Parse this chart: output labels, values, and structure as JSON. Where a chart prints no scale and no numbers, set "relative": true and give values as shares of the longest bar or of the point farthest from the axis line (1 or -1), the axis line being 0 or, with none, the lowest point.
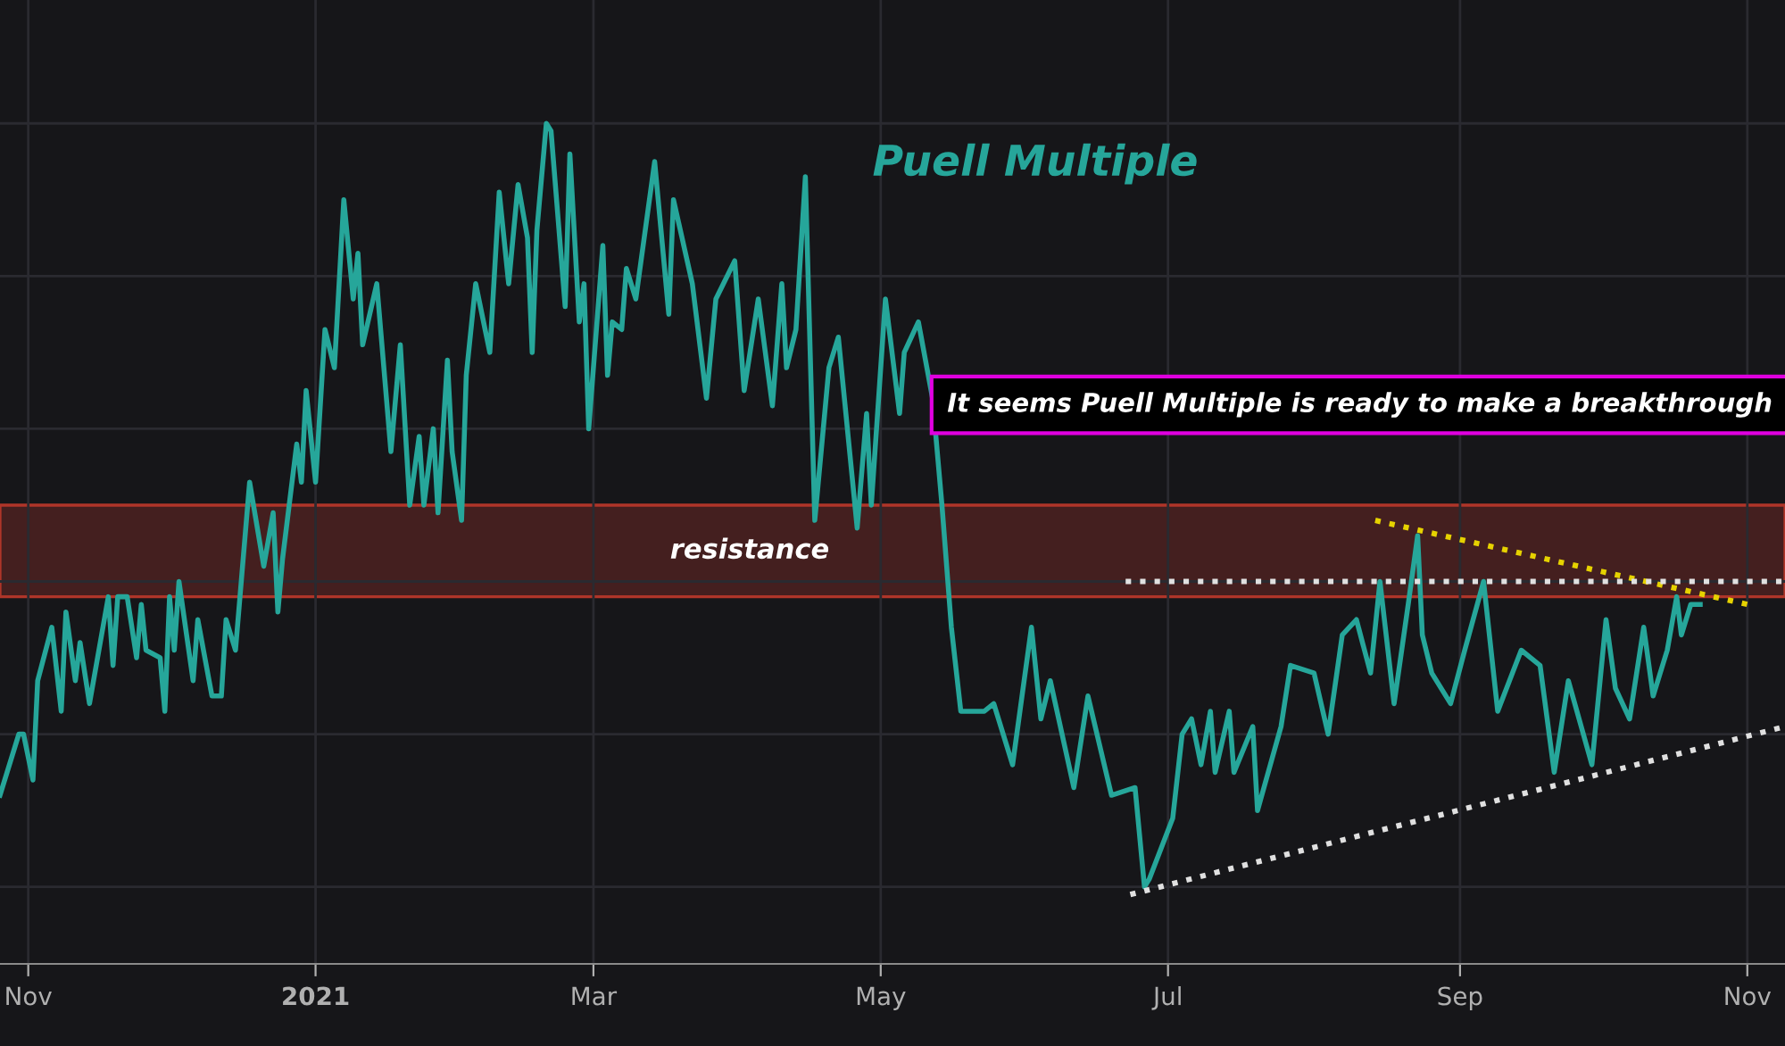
{
  "chart_data": {
    "type": "line",
    "title": "Puell Multiple",
    "relative": true,
    "grid": true,
    "tick_labels": "x",
    "xlim": [
      "2020-10-26",
      "2021-11-09"
    ],
    "xticks": [
      {
        "value": "2020-11-01",
        "label": "Nov"
      },
      {
        "value": "2021-01-01",
        "label": "2021"
      },
      {
        "value": "2021-03-01",
        "label": "Mar"
      },
      {
        "value": "2021-05-01",
        "label": "May"
      },
      {
        "value": "2021-07-01",
        "label": "Jul"
      },
      {
        "value": "2021-09-01",
        "label": "Sep"
      },
      {
        "value": "2021-11-01",
        "label": "Nov"
      }
    ],
    "x": [
      "2020-10-26",
      "2020-10-30",
      "2020-10-31",
      "2020-11-02",
      "2020-11-03",
      "2020-11-06",
      "2020-11-08",
      "2020-11-09",
      "2020-11-11",
      "2020-11-12",
      "2020-11-14",
      "2020-11-18",
      "2020-11-19",
      "2020-11-20",
      "2020-11-22",
      "2020-11-24",
      "2020-11-25",
      "2020-11-26",
      "2020-11-29",
      "2020-11-30",
      "2020-12-01",
      "2020-12-02",
      "2020-12-03",
      "2020-12-06",
      "2020-12-07",
      "2020-12-10",
      "2020-12-12",
      "2020-12-13",
      "2020-12-15",
      "2020-12-18",
      "2020-12-21",
      "2020-12-23",
      "2020-12-24",
      "2020-12-25",
      "2020-12-28",
      "2020-12-29",
      "2020-12-30",
      "2021-01-01",
      "2021-01-03",
      "2021-01-05",
      "2021-01-07",
      "2021-01-09",
      "2021-01-10",
      "2021-01-11",
      "2021-01-14",
      "2021-01-17",
      "2021-01-19",
      "2021-01-21",
      "2021-01-23",
      "2021-01-24",
      "2021-01-26",
      "2021-01-27",
      "2021-01-29",
      "2021-01-30",
      "2021-02-01",
      "2021-02-02",
      "2021-02-04",
      "2021-02-07",
      "2021-02-09",
      "2021-02-11",
      "2021-02-13",
      "2021-02-15",
      "2021-02-16",
      "2021-02-17",
      "2021-02-19",
      "2021-02-20",
      "2021-02-23",
      "2021-02-24",
      "2021-02-26",
      "2021-02-27",
      "2021-02-28",
      "2021-03-03",
      "2021-03-04",
      "2021-03-05",
      "2021-03-07",
      "2021-03-08",
      "2021-03-10",
      "2021-03-14",
      "2021-03-17",
      "2021-03-18",
      "2021-03-22",
      "2021-03-25",
      "2021-03-27",
      "2021-03-31",
      "2021-04-02",
      "2021-04-05",
      "2021-04-08",
      "2021-04-10",
      "2021-04-11",
      "2021-04-13",
      "2021-04-15",
      "2021-04-17",
      "2021-04-20",
      "2021-04-22",
      "2021-04-26",
      "2021-04-28",
      "2021-04-29",
      "2021-05-02",
      "2021-05-05",
      "2021-05-06",
      "2021-05-09",
      "2021-05-12",
      "2021-05-14",
      "2021-05-16",
      "2021-05-18",
      "2021-05-23",
      "2021-05-25",
      "2021-05-29",
      "2021-06-02",
      "2021-06-04",
      "2021-06-06",
      "2021-06-11",
      "2021-06-14",
      "2021-06-19",
      "2021-06-24",
      "2021-06-26",
      "2021-06-27",
      "2021-07-02",
      "2021-07-04",
      "2021-07-06",
      "2021-07-08",
      "2021-07-10",
      "2021-07-11",
      "2021-07-14",
      "2021-07-15",
      "2021-07-19",
      "2021-07-20",
      "2021-07-25",
      "2021-07-27",
      "2021-08-01",
      "2021-08-04",
      "2021-08-07",
      "2021-08-10",
      "2021-08-13",
      "2021-08-15",
      "2021-08-18",
      "2021-08-21",
      "2021-08-23",
      "2021-08-24",
      "2021-08-26",
      "2021-08-30",
      "2021-09-02",
      "2021-09-06",
      "2021-09-09",
      "2021-09-14",
      "2021-09-18",
      "2021-09-21",
      "2021-09-24",
      "2021-09-29",
      "2021-10-02",
      "2021-10-04",
      "2021-10-07",
      "2021-10-10",
      "2021-10-12",
      "2021-10-15",
      "2021-10-17",
      "2021-10-18",
      "2021-10-20",
      "2021-10-22"
    ],
    "series": [
      {
        "color": "#26a69a",
        "values": [
          0.12,
          0.2,
          0.2,
          0.14,
          0.27,
          0.34,
          0.23,
          0.36,
          0.27,
          0.32,
          0.24,
          0.38,
          0.29,
          0.38,
          0.38,
          0.3,
          0.37,
          0.31,
          0.3,
          0.23,
          0.38,
          0.31,
          0.4,
          0.27,
          0.35,
          0.25,
          0.25,
          0.35,
          0.31,
          0.53,
          0.42,
          0.49,
          0.36,
          0.43,
          0.58,
          0.53,
          0.65,
          0.53,
          0.73,
          0.68,
          0.9,
          0.77,
          0.83,
          0.71,
          0.79,
          0.57,
          0.71,
          0.5,
          0.59,
          0.5,
          0.6,
          0.49,
          0.69,
          0.57,
          0.48,
          0.67,
          0.79,
          0.7,
          0.91,
          0.79,
          0.92,
          0.85,
          0.7,
          0.86,
          1.0,
          0.99,
          0.76,
          0.96,
          0.74,
          0.79,
          0.6,
          0.84,
          0.67,
          0.74,
          0.73,
          0.81,
          0.77,
          0.95,
          0.75,
          0.9,
          0.79,
          0.64,
          0.77,
          0.82,
          0.65,
          0.77,
          0.63,
          0.79,
          0.68,
          0.73,
          0.93,
          0.48,
          0.68,
          0.72,
          0.47,
          0.62,
          0.5,
          0.77,
          0.62,
          0.7,
          0.74,
          0.64,
          0.5,
          0.34,
          0.23,
          0.23,
          0.24,
          0.16,
          0.34,
          0.22,
          0.27,
          0.13,
          0.25,
          0.12,
          0.13,
          0.0,
          0.01,
          0.09,
          0.2,
          0.22,
          0.16,
          0.23,
          0.15,
          0.23,
          0.15,
          0.21,
          0.1,
          0.21,
          0.29,
          0.28,
          0.2,
          0.33,
          0.35,
          0.28,
          0.4,
          0.24,
          0.37,
          0.46,
          0.33,
          0.28,
          0.24,
          0.31,
          0.4,
          0.23,
          0.31,
          0.29,
          0.15,
          0.27,
          0.16,
          0.35,
          0.26,
          0.22,
          0.34,
          0.25,
          0.31,
          0.38,
          0.33,
          0.37,
          0.37
        ]
      },
      {
        "type": "line",
        "color": "#e6d200",
        "line_style": "dotted",
        "x": [
          "2021-08-14",
          "2021-11-01"
        ],
        "values": [
          0.48,
          0.37
        ]
      },
      {
        "type": "line",
        "color": "#e0e0e0",
        "line_style": "dotted",
        "x": [
          "2021-06-22",
          "2021-11-09"
        ],
        "values": [
          0.4,
          0.4
        ]
      },
      {
        "type": "line",
        "color": "#e0e0e0",
        "line_style": "dotted",
        "x": [
          "2021-06-23",
          "2021-11-09"
        ],
        "values": [
          -0.01,
          0.21
        ]
      }
    ],
    "bands": [
      {
        "axis": "y",
        "from": 0.38,
        "to": 0.5,
        "label": "resistance",
        "color": "#4a2020"
      }
    ],
    "annotations": [
      "It seems Puell Multiple is ready to make a breakthrough"
    ]
  }
}
